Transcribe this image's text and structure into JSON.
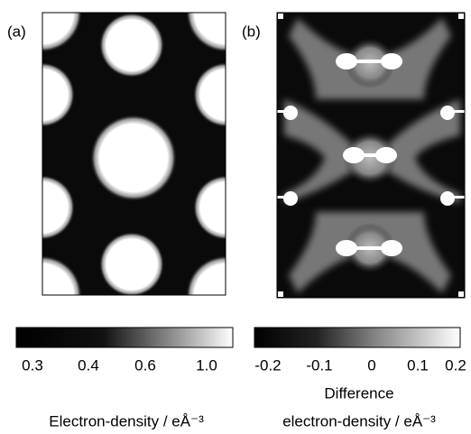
{
  "panels": [
    {
      "label": "(a)",
      "colorbar": {
        "ticks": [
          "0.3",
          "0.4",
          "0.6",
          "1.0"
        ],
        "title": "Electron-density / eÅ⁻³"
      }
    },
    {
      "label": "(b)",
      "colorbar": {
        "ticks": [
          "-0.2",
          "-0.1",
          "0",
          "0.1",
          "0.2"
        ],
        "title_lines": [
          "Difference",
          "electron-density / eÅ⁻³"
        ]
      }
    }
  ]
}
